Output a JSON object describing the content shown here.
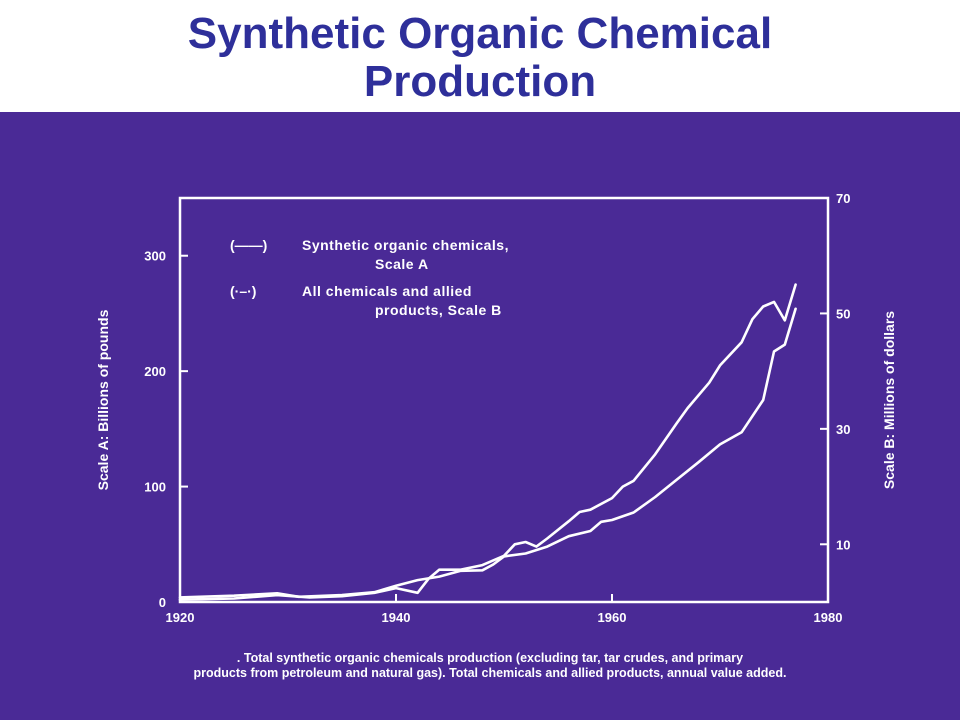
{
  "slide": {
    "title_line1": "Synthetic Organic Chemical",
    "title_line2": "Production",
    "caption_line1": ". Total synthetic organic chemicals production (excluding tar, tar crudes, and primary",
    "caption_line2": "products from petroleum and natural gas). Total chemicals and allied products, annual value added."
  },
  "colors": {
    "title": "#2e2f9a",
    "background": "#4a2a96",
    "ink": "#ffffff"
  },
  "chart_data": {
    "type": "line",
    "title": "",
    "xlabel": "",
    "ylabel_left": "Scale A: Billions of pounds",
    "ylabel_right": "Scale B: Millions of dollars",
    "xlim": [
      1920,
      1980
    ],
    "ylim_left": [
      0,
      350
    ],
    "ylim_right": [
      0,
      70
    ],
    "x_ticks": [
      1920,
      1940,
      1960,
      1980
    ],
    "y_ticks_left": [
      0,
      100,
      200,
      300
    ],
    "y_ticks_right": [
      10,
      30,
      50,
      70
    ],
    "grid": false,
    "legend_position": "top-left",
    "legend": [
      {
        "key": "(——)",
        "line1": "Synthetic organic chemicals,",
        "line2": "Scale A"
      },
      {
        "key": "(·–·)",
        "line1": "All chemicals and allied",
        "line2": "products, Scale B"
      }
    ],
    "series": [
      {
        "axis": "left",
        "x": [
          1920,
          1925,
          1929,
          1932,
          1935,
          1938,
          1940,
          1942,
          1943,
          1944,
          1946,
          1948,
          1950,
          1951,
          1952,
          1953,
          1954,
          1956,
          1957,
          1958,
          1960,
          1961,
          1962,
          1964,
          1966,
          1967,
          1969,
          1970,
          1972,
          1973,
          1974,
          1975,
          1976,
          1977
        ],
        "y": [
          2,
          3,
          6,
          4,
          5,
          8,
          12,
          8,
          20,
          28,
          28,
          32,
          40,
          50,
          52,
          48,
          55,
          70,
          78,
          80,
          90,
          100,
          105,
          128,
          155,
          168,
          190,
          205,
          225,
          245,
          256,
          260,
          244,
          275
        ]
      },
      {
        "axis": "right",
        "x": [
          1920,
          1925,
          1929,
          1931,
          1935,
          1938,
          1940,
          1942,
          1944,
          1946,
          1948,
          1949,
          1950,
          1952,
          1954,
          1956,
          1958,
          1959,
          1960,
          1962,
          1964,
          1966,
          1968,
          1970,
          1972,
          1974,
          1975,
          1976,
          1977
        ],
        "y": [
          0.8,
          1.1,
          1.5,
          0.9,
          1.2,
          1.7,
          2.8,
          3.8,
          4.4,
          5.4,
          5.5,
          6.5,
          7.9,
          8.4,
          9.6,
          11.4,
          12.3,
          13.9,
          14.2,
          15.5,
          18.2,
          21.2,
          24.2,
          27.3,
          29.4,
          35,
          43.4,
          44.6,
          50.8
        ]
      }
    ]
  }
}
